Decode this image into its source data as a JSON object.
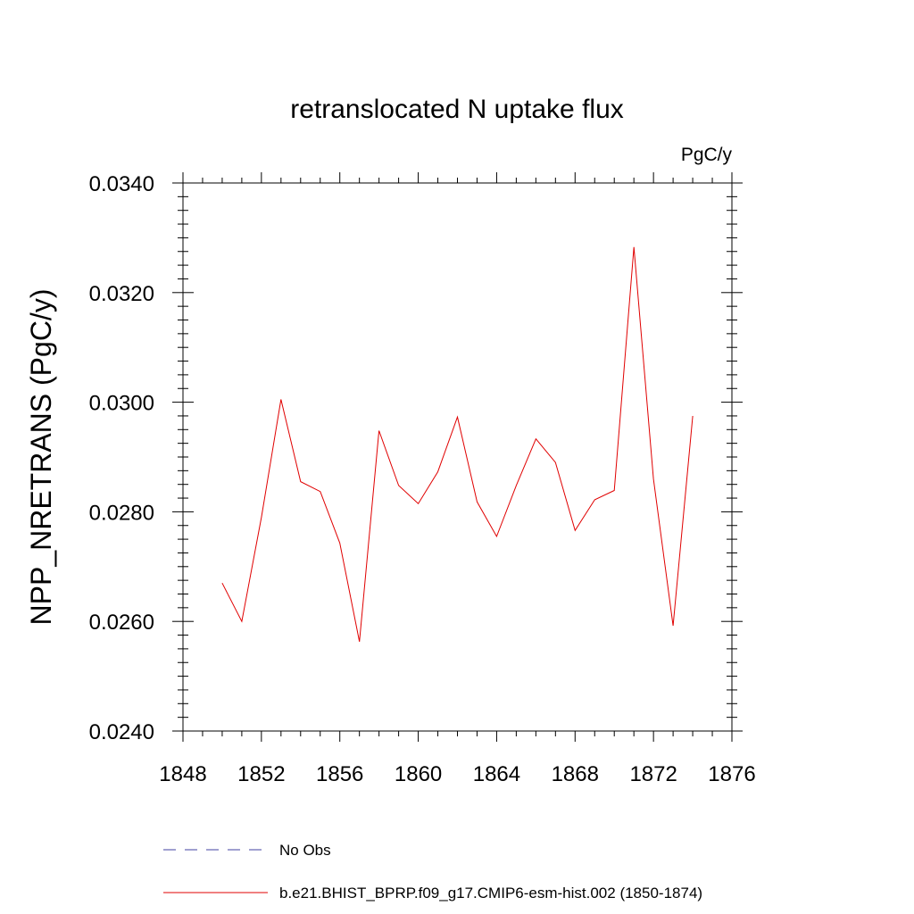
{
  "chart_data": {
    "type": "line",
    "title": "retranslocated N uptake flux",
    "units_label": "PgC/y",
    "xlabel": "",
    "ylabel": "NPP_NRETRANS  (PgC/y)",
    "xlim": [
      1848,
      1876
    ],
    "ylim": [
      0.024,
      0.034
    ],
    "xticks": [
      1848,
      1852,
      1856,
      1860,
      1864,
      1868,
      1872,
      1876
    ],
    "xtick_labels": [
      "1848",
      "1852",
      "1856",
      "1860",
      "1864",
      "1868",
      "1872",
      "1876"
    ],
    "yticks": [
      0.024,
      0.026,
      0.028,
      0.03,
      0.032,
      0.034
    ],
    "ytick_labels": [
      "0.0240",
      "0.0260",
      "0.0280",
      "0.0300",
      "0.0320",
      "0.0340"
    ],
    "grid": false,
    "legend_position": "bottom",
    "series": [
      {
        "name": "No Obs",
        "color": "#4040a0",
        "dash": "dashed",
        "x": [],
        "y": []
      },
      {
        "name": "b.e21.BHIST_BPRP.f09_g17.CMIP6-esm-hist.002 (1850-1874)",
        "color": "#e00000",
        "dash": "solid",
        "x": [
          1850,
          1851,
          1852,
          1853,
          1854,
          1855,
          1856,
          1857,
          1858,
          1859,
          1860,
          1861,
          1862,
          1863,
          1864,
          1865,
          1866,
          1867,
          1868,
          1869,
          1870,
          1871,
          1872,
          1873,
          1874
        ],
        "y": [
          0.0267,
          0.026,
          0.0279,
          0.03005,
          0.02855,
          0.02837,
          0.02743,
          0.02563,
          0.02948,
          0.02848,
          0.02815,
          0.02873,
          0.02973,
          0.02818,
          0.02755,
          0.02848,
          0.02933,
          0.0289,
          0.02766,
          0.02822,
          0.02839,
          0.03283,
          0.0286,
          0.02592,
          0.02975
        ]
      }
    ]
  }
}
